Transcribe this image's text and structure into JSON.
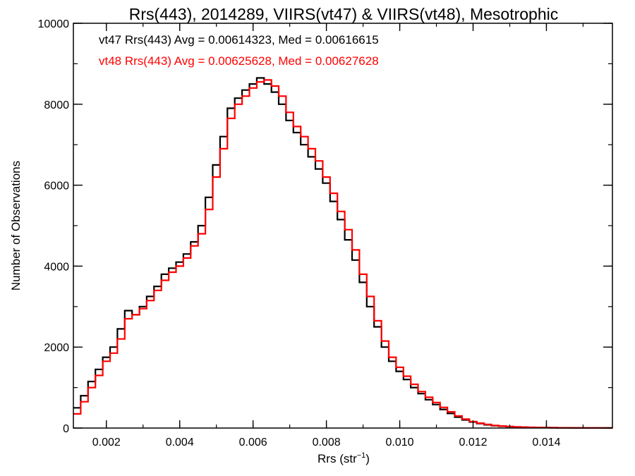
{
  "chart_data": {
    "type": "line",
    "title": "Rrs(443), 2014289, VIIRS(vt47) & VIIRS(vt48), Mesotrophic",
    "xlabel": "Rrs (str",
    "xlabel_sup": "−1",
    "xlabel_close": ")",
    "ylabel": "Number of Observations",
    "xlim": [
      0.0011,
      0.0158
    ],
    "ylim": [
      0,
      10000
    ],
    "xticks": [
      0.002,
      0.004,
      0.006,
      0.008,
      0.01,
      0.012,
      0.014
    ],
    "xtick_labels": [
      "0.002",
      "0.004",
      "0.006",
      "0.008",
      "0.010",
      "0.012",
      "0.014"
    ],
    "yticks": [
      0,
      2000,
      4000,
      6000,
      8000,
      10000
    ],
    "ytick_labels": [
      "0",
      "2000",
      "4000",
      "6000",
      "8000",
      "10000"
    ],
    "grid": false,
    "step": true,
    "annotations": [
      {
        "text": "vt47 Rrs(443) Avg = 0.00614323, Med = 0.00616615",
        "color": "#000000"
      },
      {
        "text": "vt48 Rrs(443) Avg = 0.00625628, Med = 0.00627628",
        "color": "#ff0000"
      }
    ],
    "series": [
      {
        "color": "#000000",
        "x": [
          0.0011,
          0.0013,
          0.0015,
          0.0017,
          0.0019,
          0.0021,
          0.0023,
          0.0025,
          0.0027,
          0.0029,
          0.0031,
          0.0033,
          0.0035,
          0.0037,
          0.0039,
          0.0041,
          0.0043,
          0.0045,
          0.0047,
          0.0049,
          0.0051,
          0.0053,
          0.0055,
          0.0057,
          0.0059,
          0.0061,
          0.0063,
          0.0065,
          0.0067,
          0.0069,
          0.0071,
          0.0073,
          0.0075,
          0.0077,
          0.0079,
          0.0081,
          0.0083,
          0.0085,
          0.0087,
          0.0089,
          0.0091,
          0.0093,
          0.0095,
          0.0097,
          0.0099,
          0.0101,
          0.0103,
          0.0105,
          0.0107,
          0.0109,
          0.0111,
          0.0113,
          0.0115,
          0.0117,
          0.0119,
          0.0121,
          0.0123,
          0.0125,
          0.0127,
          0.0129,
          0.0131,
          0.0133,
          0.0135,
          0.0137,
          0.0139,
          0.0141,
          0.0143,
          0.0145,
          0.0147,
          0.0149,
          0.0151,
          0.0153,
          0.0155,
          0.0157
        ],
        "values": [
          500,
          800,
          1150,
          1450,
          1750,
          2000,
          2450,
          2900,
          2800,
          3000,
          3250,
          3500,
          3800,
          3950,
          4100,
          4300,
          4600,
          5000,
          5700,
          6500,
          7200,
          7900,
          8150,
          8350,
          8500,
          8650,
          8500,
          8300,
          8000,
          7600,
          7300,
          7000,
          6700,
          6400,
          6050,
          5600,
          5150,
          4650,
          4150,
          3600,
          3000,
          2500,
          2000,
          1650,
          1400,
          1200,
          1000,
          850,
          700,
          580,
          460,
          360,
          270,
          200,
          150,
          110,
          80,
          60,
          45,
          35,
          25,
          20,
          15,
          12,
          10,
          8,
          6,
          5,
          4,
          4,
          3,
          3,
          2,
          2
        ]
      },
      {
        "color": "#ff0000",
        "x": [
          0.0011,
          0.0013,
          0.0015,
          0.0017,
          0.0019,
          0.0021,
          0.0023,
          0.0025,
          0.0027,
          0.0029,
          0.0031,
          0.0033,
          0.0035,
          0.0037,
          0.0039,
          0.0041,
          0.0043,
          0.0045,
          0.0047,
          0.0049,
          0.0051,
          0.0053,
          0.0055,
          0.0057,
          0.0059,
          0.0061,
          0.0063,
          0.0065,
          0.0067,
          0.0069,
          0.0071,
          0.0073,
          0.0075,
          0.0077,
          0.0079,
          0.0081,
          0.0083,
          0.0085,
          0.0087,
          0.0089,
          0.0091,
          0.0093,
          0.0095,
          0.0097,
          0.0099,
          0.0101,
          0.0103,
          0.0105,
          0.0107,
          0.0109,
          0.0111,
          0.0113,
          0.0115,
          0.0117,
          0.0119,
          0.0121,
          0.0123,
          0.0125,
          0.0127,
          0.0129,
          0.0131,
          0.0133,
          0.0135,
          0.0137,
          0.0139,
          0.0141,
          0.0143,
          0.0145,
          0.0147,
          0.0149,
          0.0151,
          0.0153,
          0.0155,
          0.0157
        ],
        "values": [
          350,
          650,
          1000,
          1300,
          1650,
          1850,
          2200,
          2700,
          2800,
          2950,
          3150,
          3400,
          3650,
          3850,
          4000,
          4200,
          4500,
          4800,
          5400,
          6200,
          6900,
          7650,
          8000,
          8200,
          8400,
          8550,
          8600,
          8450,
          8200,
          7800,
          7450,
          7200,
          6900,
          6600,
          6200,
          5800,
          5350,
          4900,
          4400,
          3800,
          3250,
          2650,
          2150,
          1750,
          1500,
          1280,
          1080,
          900,
          760,
          630,
          510,
          400,
          300,
          220,
          160,
          120,
          90,
          65,
          50,
          38,
          28,
          22,
          17,
          13,
          11,
          9,
          7,
          6,
          5,
          4,
          4,
          3,
          3,
          2
        ]
      }
    ]
  }
}
